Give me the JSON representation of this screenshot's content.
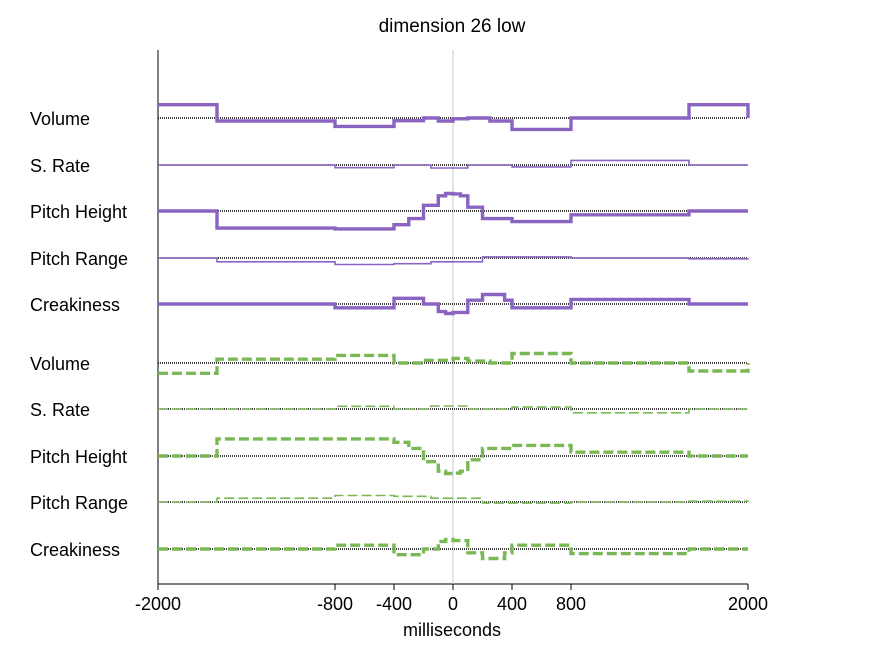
{
  "chart_data": {
    "type": "line",
    "title": "dimension 26 low",
    "xlabel": "milliseconds",
    "ylabel": "",
    "xlim": [
      -2000,
      2000
    ],
    "x_ticks": [
      -2000,
      -800,
      -400,
      0,
      400,
      800,
      2000
    ],
    "x_tick_labels": [
      "-2000",
      "-800",
      "-400",
      "0",
      "400",
      "800",
      "2000"
    ],
    "grid": false,
    "legend": "none",
    "zero_line_x": 0,
    "groups": [
      {
        "color": "#8a64c0",
        "style": "solid",
        "rows": [
          {
            "label": "Volume",
            "width": 3.4,
            "points": [
              [
                -2000,
                0.35
              ],
              [
                -1600,
                -0.08
              ],
              [
                -800,
                -0.22
              ],
              [
                -400,
                -0.07
              ],
              [
                -200,
                0.0
              ],
              [
                -100,
                -0.08
              ],
              [
                0,
                -0.02
              ],
              [
                100,
                0.0
              ],
              [
                250,
                -0.08
              ],
              [
                400,
                -0.3
              ],
              [
                800,
                0.0
              ],
              [
                1600,
                0.35
              ],
              [
                2000,
                0.0
              ]
            ]
          },
          {
            "label": "S. Rate",
            "width": 1.6,
            "points": [
              [
                -2000,
                0.0
              ],
              [
                -800,
                -0.07
              ],
              [
                -400,
                0.0
              ],
              [
                -150,
                -0.08
              ],
              [
                100,
                0.0
              ],
              [
                400,
                -0.05
              ],
              [
                800,
                0.12
              ],
              [
                1600,
                0.0
              ],
              [
                2000,
                0.0
              ]
            ]
          },
          {
            "label": "Pitch Height",
            "width": 3.4,
            "points": [
              [
                -2000,
                0.0
              ],
              [
                -1600,
                -0.45
              ],
              [
                -800,
                -0.47
              ],
              [
                -400,
                -0.36
              ],
              [
                -300,
                -0.2
              ],
              [
                -200,
                0.15
              ],
              [
                -100,
                0.4
              ],
              [
                -50,
                0.46
              ],
              [
                0,
                0.45
              ],
              [
                50,
                0.4
              ],
              [
                100,
                0.1
              ],
              [
                200,
                -0.2
              ],
              [
                400,
                -0.28
              ],
              [
                800,
                -0.1
              ],
              [
                1600,
                0.0
              ],
              [
                2000,
                0.0
              ]
            ]
          },
          {
            "label": "Pitch Range",
            "width": 1.6,
            "points": [
              [
                -2000,
                0.0
              ],
              [
                -1600,
                -0.1
              ],
              [
                -800,
                -0.17
              ],
              [
                -400,
                -0.15
              ],
              [
                -150,
                -0.1
              ],
              [
                200,
                0.03
              ],
              [
                800,
                0.0
              ],
              [
                1600,
                -0.02
              ],
              [
                2000,
                0.0
              ]
            ]
          },
          {
            "label": "Creakiness",
            "width": 3.4,
            "points": [
              [
                -2000,
                0.0
              ],
              [
                -800,
                -0.1
              ],
              [
                -400,
                0.15
              ],
              [
                -200,
                0.0
              ],
              [
                -100,
                -0.2
              ],
              [
                -50,
                -0.25
              ],
              [
                0,
                -0.22
              ],
              [
                100,
                0.1
              ],
              [
                200,
                0.25
              ],
              [
                350,
                0.1
              ],
              [
                400,
                -0.1
              ],
              [
                800,
                0.12
              ],
              [
                1600,
                0.0
              ],
              [
                2000,
                0.0
              ]
            ]
          }
        ]
      },
      {
        "color": "#7ab856",
        "style": "dashed",
        "rows": [
          {
            "label": "Volume",
            "width": 3.4,
            "points": [
              [
                -2000,
                -0.27
              ],
              [
                -1600,
                0.1
              ],
              [
                -800,
                0.2
              ],
              [
                -400,
                0.0
              ],
              [
                -200,
                0.07
              ],
              [
                0,
                0.12
              ],
              [
                100,
                0.05
              ],
              [
                250,
                0.0
              ],
              [
                400,
                0.25
              ],
              [
                800,
                0.0
              ],
              [
                1600,
                -0.21
              ],
              [
                2000,
                0.0
              ]
            ]
          },
          {
            "label": "S. Rate",
            "width": 1.6,
            "points": [
              [
                -2000,
                0.0
              ],
              [
                -800,
                0.07
              ],
              [
                -400,
                0.0
              ],
              [
                -150,
                0.08
              ],
              [
                100,
                0.0
              ],
              [
                400,
                0.05
              ],
              [
                800,
                -0.1
              ],
              [
                1600,
                0.0
              ],
              [
                2000,
                0.0
              ]
            ]
          },
          {
            "label": "Pitch Height",
            "width": 3.4,
            "points": [
              [
                -2000,
                0.0
              ],
              [
                -1600,
                0.45
              ],
              [
                -800,
                0.45
              ],
              [
                -400,
                0.36
              ],
              [
                -300,
                0.2
              ],
              [
                -200,
                -0.15
              ],
              [
                -100,
                -0.4
              ],
              [
                -50,
                -0.46
              ],
              [
                0,
                -0.45
              ],
              [
                50,
                -0.4
              ],
              [
                100,
                -0.1
              ],
              [
                200,
                0.2
              ],
              [
                400,
                0.28
              ],
              [
                800,
                0.1
              ],
              [
                1600,
                0.0
              ],
              [
                2000,
                0.0
              ]
            ]
          },
          {
            "label": "Pitch Range",
            "width": 1.6,
            "points": [
              [
                -2000,
                0.0
              ],
              [
                -1600,
                0.1
              ],
              [
                -800,
                0.17
              ],
              [
                -400,
                0.15
              ],
              [
                -150,
                0.1
              ],
              [
                200,
                -0.03
              ],
              [
                800,
                0.0
              ],
              [
                1600,
                0.02
              ],
              [
                2000,
                0.0
              ]
            ]
          },
          {
            "label": "Creakiness",
            "width": 3.4,
            "points": [
              [
                -2000,
                0.0
              ],
              [
                -800,
                0.1
              ],
              [
                -400,
                -0.15
              ],
              [
                -200,
                0.0
              ],
              [
                -100,
                0.2
              ],
              [
                -50,
                0.25
              ],
              [
                0,
                0.22
              ],
              [
                100,
                -0.1
              ],
              [
                200,
                -0.25
              ],
              [
                350,
                -0.1
              ],
              [
                400,
                0.1
              ],
              [
                800,
                -0.12
              ],
              [
                1600,
                0.0
              ],
              [
                2000,
                0.0
              ]
            ]
          }
        ]
      }
    ]
  }
}
